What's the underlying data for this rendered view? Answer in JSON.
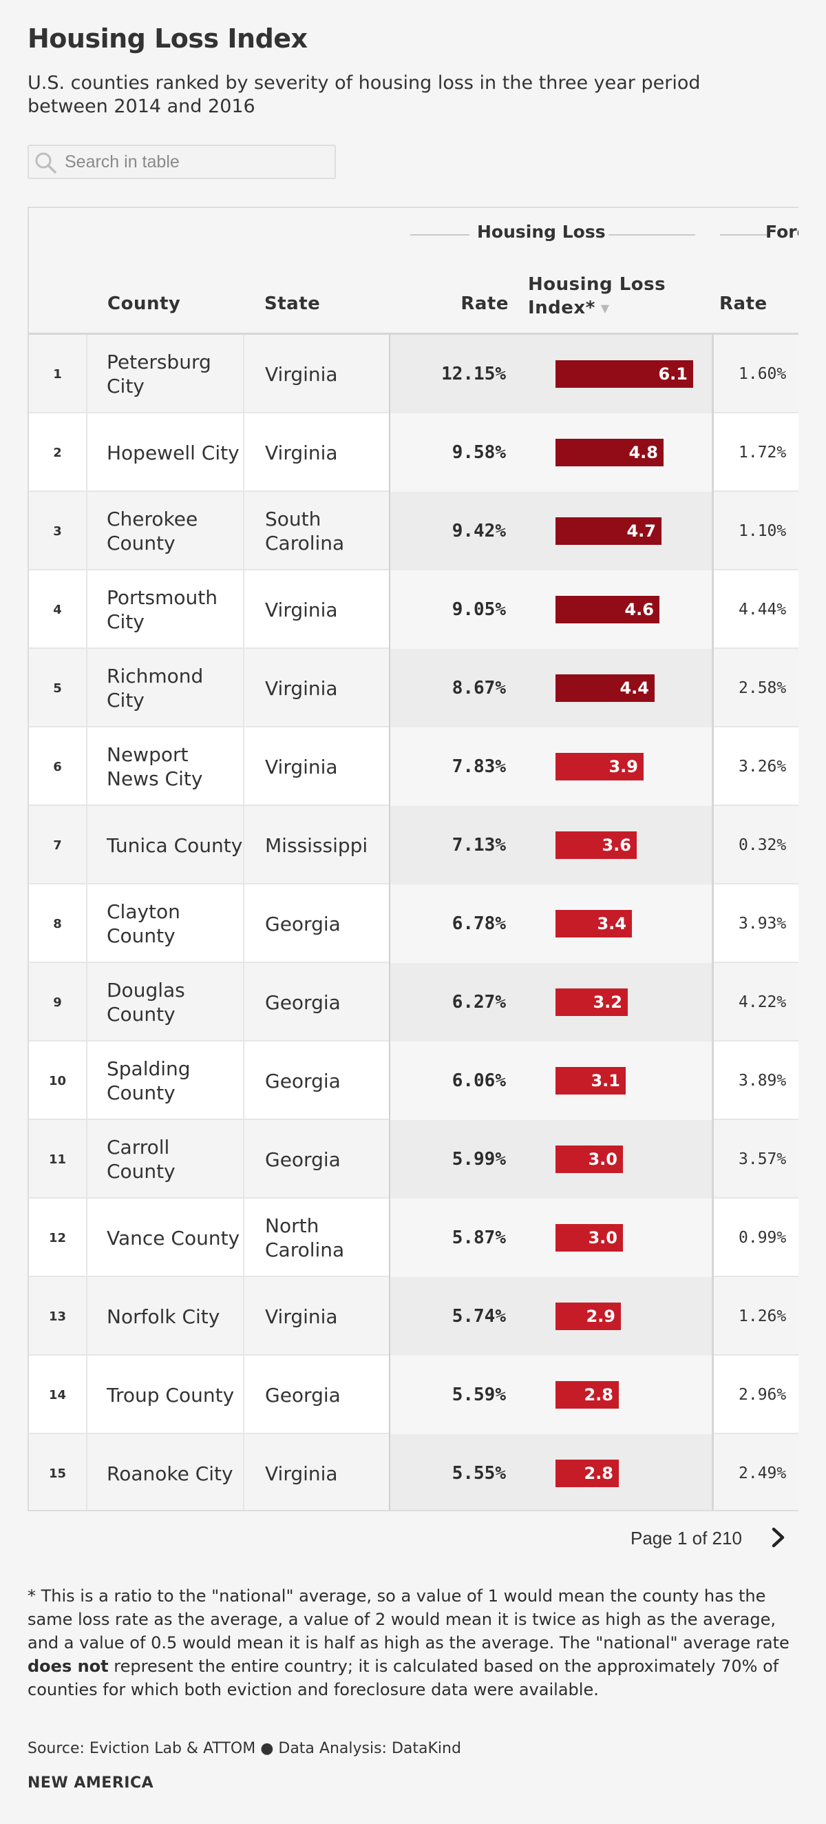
{
  "header": {
    "title": "Housing Loss Index",
    "subtitle": "U.S. counties ranked by severity of housing loss in the three year period between 2014 and 2016"
  },
  "search": {
    "placeholder": "Search in table",
    "value": ""
  },
  "table": {
    "group_housing_loss": "Housing Loss",
    "group_foreclosure": "Fore",
    "columns": {
      "county": "County",
      "state": "State",
      "rate": "Rate",
      "index_line1": "Housing Loss",
      "index_line2": "Index*",
      "frate": "Rate"
    },
    "rows": [
      {
        "rank": "1",
        "county": "Petersburg City",
        "state": "Virginia",
        "rate": "12.15%",
        "index": 6.1,
        "index_label": "6.1",
        "frate": "1.60%"
      },
      {
        "rank": "2",
        "county": "Hopewell City",
        "state": "Virginia",
        "rate": "9.58%",
        "index": 4.8,
        "index_label": "4.8",
        "frate": "1.72%"
      },
      {
        "rank": "3",
        "county": "Cherokee County",
        "state": "South Carolina",
        "rate": "9.42%",
        "index": 4.7,
        "index_label": "4.7",
        "frate": "1.10%"
      },
      {
        "rank": "4",
        "county": "Portsmouth City",
        "state": "Virginia",
        "rate": "9.05%",
        "index": 4.6,
        "index_label": "4.6",
        "frate": "4.44%"
      },
      {
        "rank": "5",
        "county": "Richmond City",
        "state": "Virginia",
        "rate": "8.67%",
        "index": 4.4,
        "index_label": "4.4",
        "frate": "2.58%"
      },
      {
        "rank": "6",
        "county": "Newport News City",
        "state": "Virginia",
        "rate": "7.83%",
        "index": 3.9,
        "index_label": "3.9",
        "frate": "3.26%"
      },
      {
        "rank": "7",
        "county": "Tunica County",
        "state": "Mississippi",
        "rate": "7.13%",
        "index": 3.6,
        "index_label": "3.6",
        "frate": "0.32%"
      },
      {
        "rank": "8",
        "county": "Clayton County",
        "state": "Georgia",
        "rate": "6.78%",
        "index": 3.4,
        "index_label": "3.4",
        "frate": "3.93%"
      },
      {
        "rank": "9",
        "county": "Douglas County",
        "state": "Georgia",
        "rate": "6.27%",
        "index": 3.2,
        "index_label": "3.2",
        "frate": "4.22%"
      },
      {
        "rank": "10",
        "county": "Spalding County",
        "state": "Georgia",
        "rate": "6.06%",
        "index": 3.1,
        "index_label": "3.1",
        "frate": "3.89%"
      },
      {
        "rank": "11",
        "county": "Carroll County",
        "state": "Georgia",
        "rate": "5.99%",
        "index": 3.0,
        "index_label": "3.0",
        "frate": "3.57%"
      },
      {
        "rank": "12",
        "county": "Vance County",
        "state": "North Carolina",
        "rate": "5.87%",
        "index": 3.0,
        "index_label": "3.0",
        "frate": "0.99%"
      },
      {
        "rank": "13",
        "county": "Norfolk City",
        "state": "Virginia",
        "rate": "5.74%",
        "index": 2.9,
        "index_label": "2.9",
        "frate": "1.26%"
      },
      {
        "rank": "14",
        "county": "Troup County",
        "state": "Georgia",
        "rate": "5.59%",
        "index": 2.8,
        "index_label": "2.8",
        "frate": "2.96%"
      },
      {
        "rank": "15",
        "county": "Roanoke City",
        "state": "Virginia",
        "rate": "5.55%",
        "index": 2.8,
        "index_label": "2.8",
        "frate": "2.49%"
      }
    ],
    "index_max": 6.1,
    "colors": {
      "bar_dark": "#920c17",
      "bar_light": "#c61c28"
    }
  },
  "pagination": {
    "label": "Page 1 of 210",
    "next_icon": "chevron-right-icon"
  },
  "footnote": {
    "part1": "* This is a ratio to the \"national\" average, so a value of 1 would mean the county has the same loss rate as the average, a value of 2 would mean it is twice as high as the average, and a value of 0.5 would mean it is half as high as the average. The \"national\" average rate ",
    "bold": "does not",
    "part2": " represent the entire country; it is calculated based on the approximately 70% of counties for which both eviction and foreclosure data were available."
  },
  "source": "Source: Eviction Lab & ATTOM ● Data Analysis: DataKind",
  "brand": "NEW AMERICA"
}
